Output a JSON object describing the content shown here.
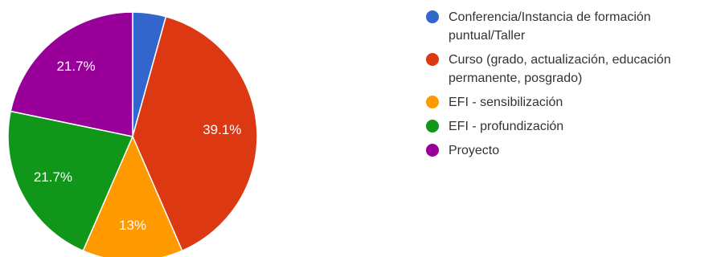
{
  "chart_data": {
    "type": "pie",
    "categories": [
      "Conferencia/Instancia de formación puntual/Taller",
      "Curso (grado, actualización, educación permanente, posgrado)",
      "EFI - sensibilización",
      "EFI - profundización",
      "Proyecto"
    ],
    "values": [
      4.3,
      39.1,
      13,
      21.7,
      21.7
    ],
    "data_labels": [
      "",
      "39.1%",
      "13%",
      "21.7%",
      "21.7%"
    ],
    "colors": [
      "#3366cc",
      "#dc3912",
      "#ff9900",
      "#109618",
      "#990099"
    ],
    "start_angle_deg": 90,
    "direction": "clockwise",
    "legend_position": "right"
  }
}
